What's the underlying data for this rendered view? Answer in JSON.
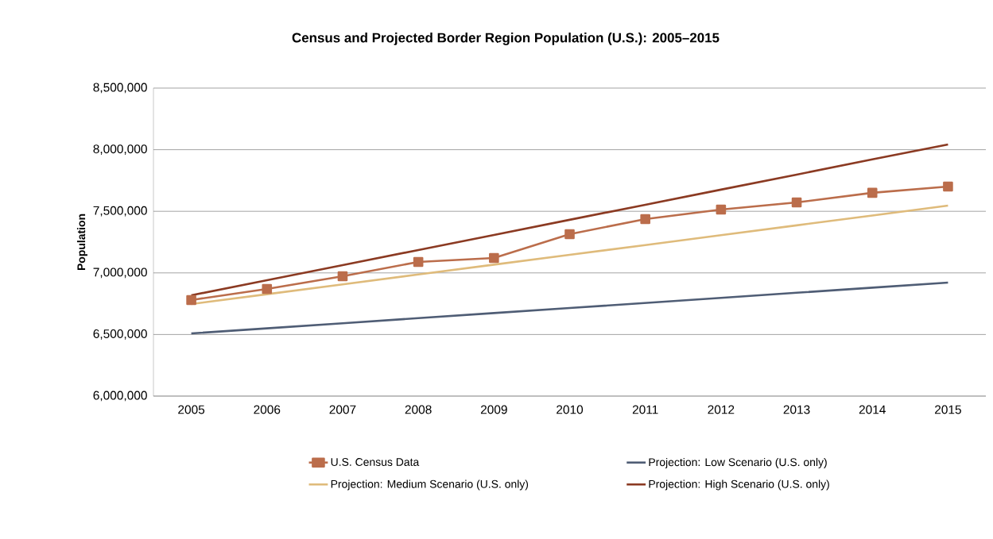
{
  "chart_data": {
    "type": "line",
    "title": "Census and Projected Border Region Population (U.S.): 2005–2015",
    "ylabel": "Population",
    "categories": [
      "2005",
      "2006",
      "2007",
      "2008",
      "2009",
      "2010",
      "2011",
      "2012",
      "2013",
      "2014",
      "2015"
    ],
    "series": [
      {
        "name": "U.S. Census Data",
        "color": "#bb6d4b",
        "marker": "square",
        "values": [
          6780000,
          6870000,
          6973000,
          7089000,
          7121000,
          7314000,
          7437000,
          7514000,
          7572000,
          7650000,
          7701000
        ]
      },
      {
        "name": "Projection: Low Scenario (U.S. only)",
        "color": "#4f5d75",
        "marker": "none",
        "values": [
          6509000,
          6550000,
          6591000,
          6633000,
          6674000,
          6715000,
          6756000,
          6797000,
          6839000,
          6880000,
          6921000
        ]
      },
      {
        "name": "Projection: Medium Scenario (U.S. only)",
        "color": "#dfbb7b",
        "marker": "none",
        "values": [
          6747000,
          6827000,
          6907000,
          6987000,
          7067000,
          7147000,
          7226000,
          7306000,
          7386000,
          7466000,
          7546000
        ]
      },
      {
        "name": "Projection: High Scenario (U.S. only)",
        "color": "#8b3a22",
        "marker": "none",
        "values": [
          6818000,
          6941000,
          7063000,
          7186000,
          7308000,
          7431000,
          7553000,
          7676000,
          7798000,
          7921000,
          8043000
        ]
      }
    ],
    "ylim": [
      6000000,
      8500000
    ],
    "yticks": [
      {
        "value": 6000000,
        "label": "6,000,000"
      },
      {
        "value": 6500000,
        "label": "6,500,000"
      },
      {
        "value": 7000000,
        "label": "7,000,000"
      },
      {
        "value": 7500000,
        "label": "7,500,000"
      },
      {
        "value": 8000000,
        "label": "8,000,000"
      },
      {
        "value": 8500000,
        "label": "8,500,000"
      }
    ],
    "grid": "y",
    "legend": "bottom",
    "line_style": "solid"
  }
}
